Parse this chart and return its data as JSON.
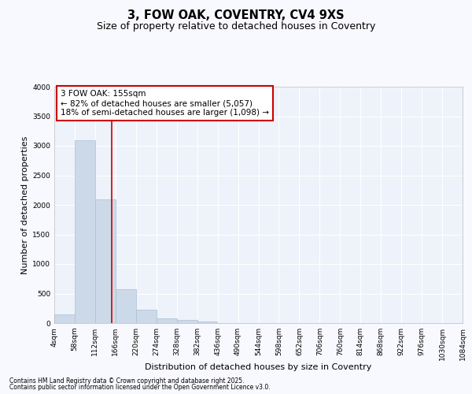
{
  "title": "3, FOW OAK, COVENTRY, CV4 9XS",
  "subtitle": "Size of property relative to detached houses in Coventry",
  "xlabel": "Distribution of detached houses by size in Coventry",
  "ylabel": "Number of detached properties",
  "bin_edges": [
    4,
    58,
    112,
    166,
    220,
    274,
    328,
    382,
    436,
    490,
    544,
    598,
    652,
    706,
    760,
    814,
    868,
    922,
    976,
    1030,
    1084
  ],
  "bar_heights": [
    150,
    3100,
    2100,
    580,
    230,
    80,
    50,
    30,
    0,
    0,
    0,
    0,
    0,
    0,
    0,
    0,
    0,
    0,
    0,
    0
  ],
  "bar_color": "#ccd9e8",
  "bar_edge_color": "#aabfd4",
  "plot_bg_color": "#eef2fa",
  "fig_bg_color": "#f8f8ff",
  "grid_color": "#ffffff",
  "red_line_x": 155,
  "annotation_line1": "3 FOW OAK: 155sqm",
  "annotation_line2": "← 82% of detached houses are smaller (5,057)",
  "annotation_line3": "18% of semi-detached houses are larger (1,098) →",
  "annotation_box_color": "#ffffff",
  "annotation_box_edge_color": "#cc0000",
  "red_line_color": "#cc0000",
  "ylim": [
    0,
    4000
  ],
  "yticks": [
    0,
    500,
    1000,
    1500,
    2000,
    2500,
    3000,
    3500,
    4000
  ],
  "footnote1": "Contains HM Land Registry data © Crown copyright and database right 2025.",
  "footnote2": "Contains public sector information licensed under the Open Government Licence v3.0.",
  "title_fontsize": 10.5,
  "subtitle_fontsize": 9,
  "tick_label_fontsize": 6.5,
  "axis_label_fontsize": 8,
  "annotation_fontsize": 7.5,
  "footnote_fontsize": 5.5
}
